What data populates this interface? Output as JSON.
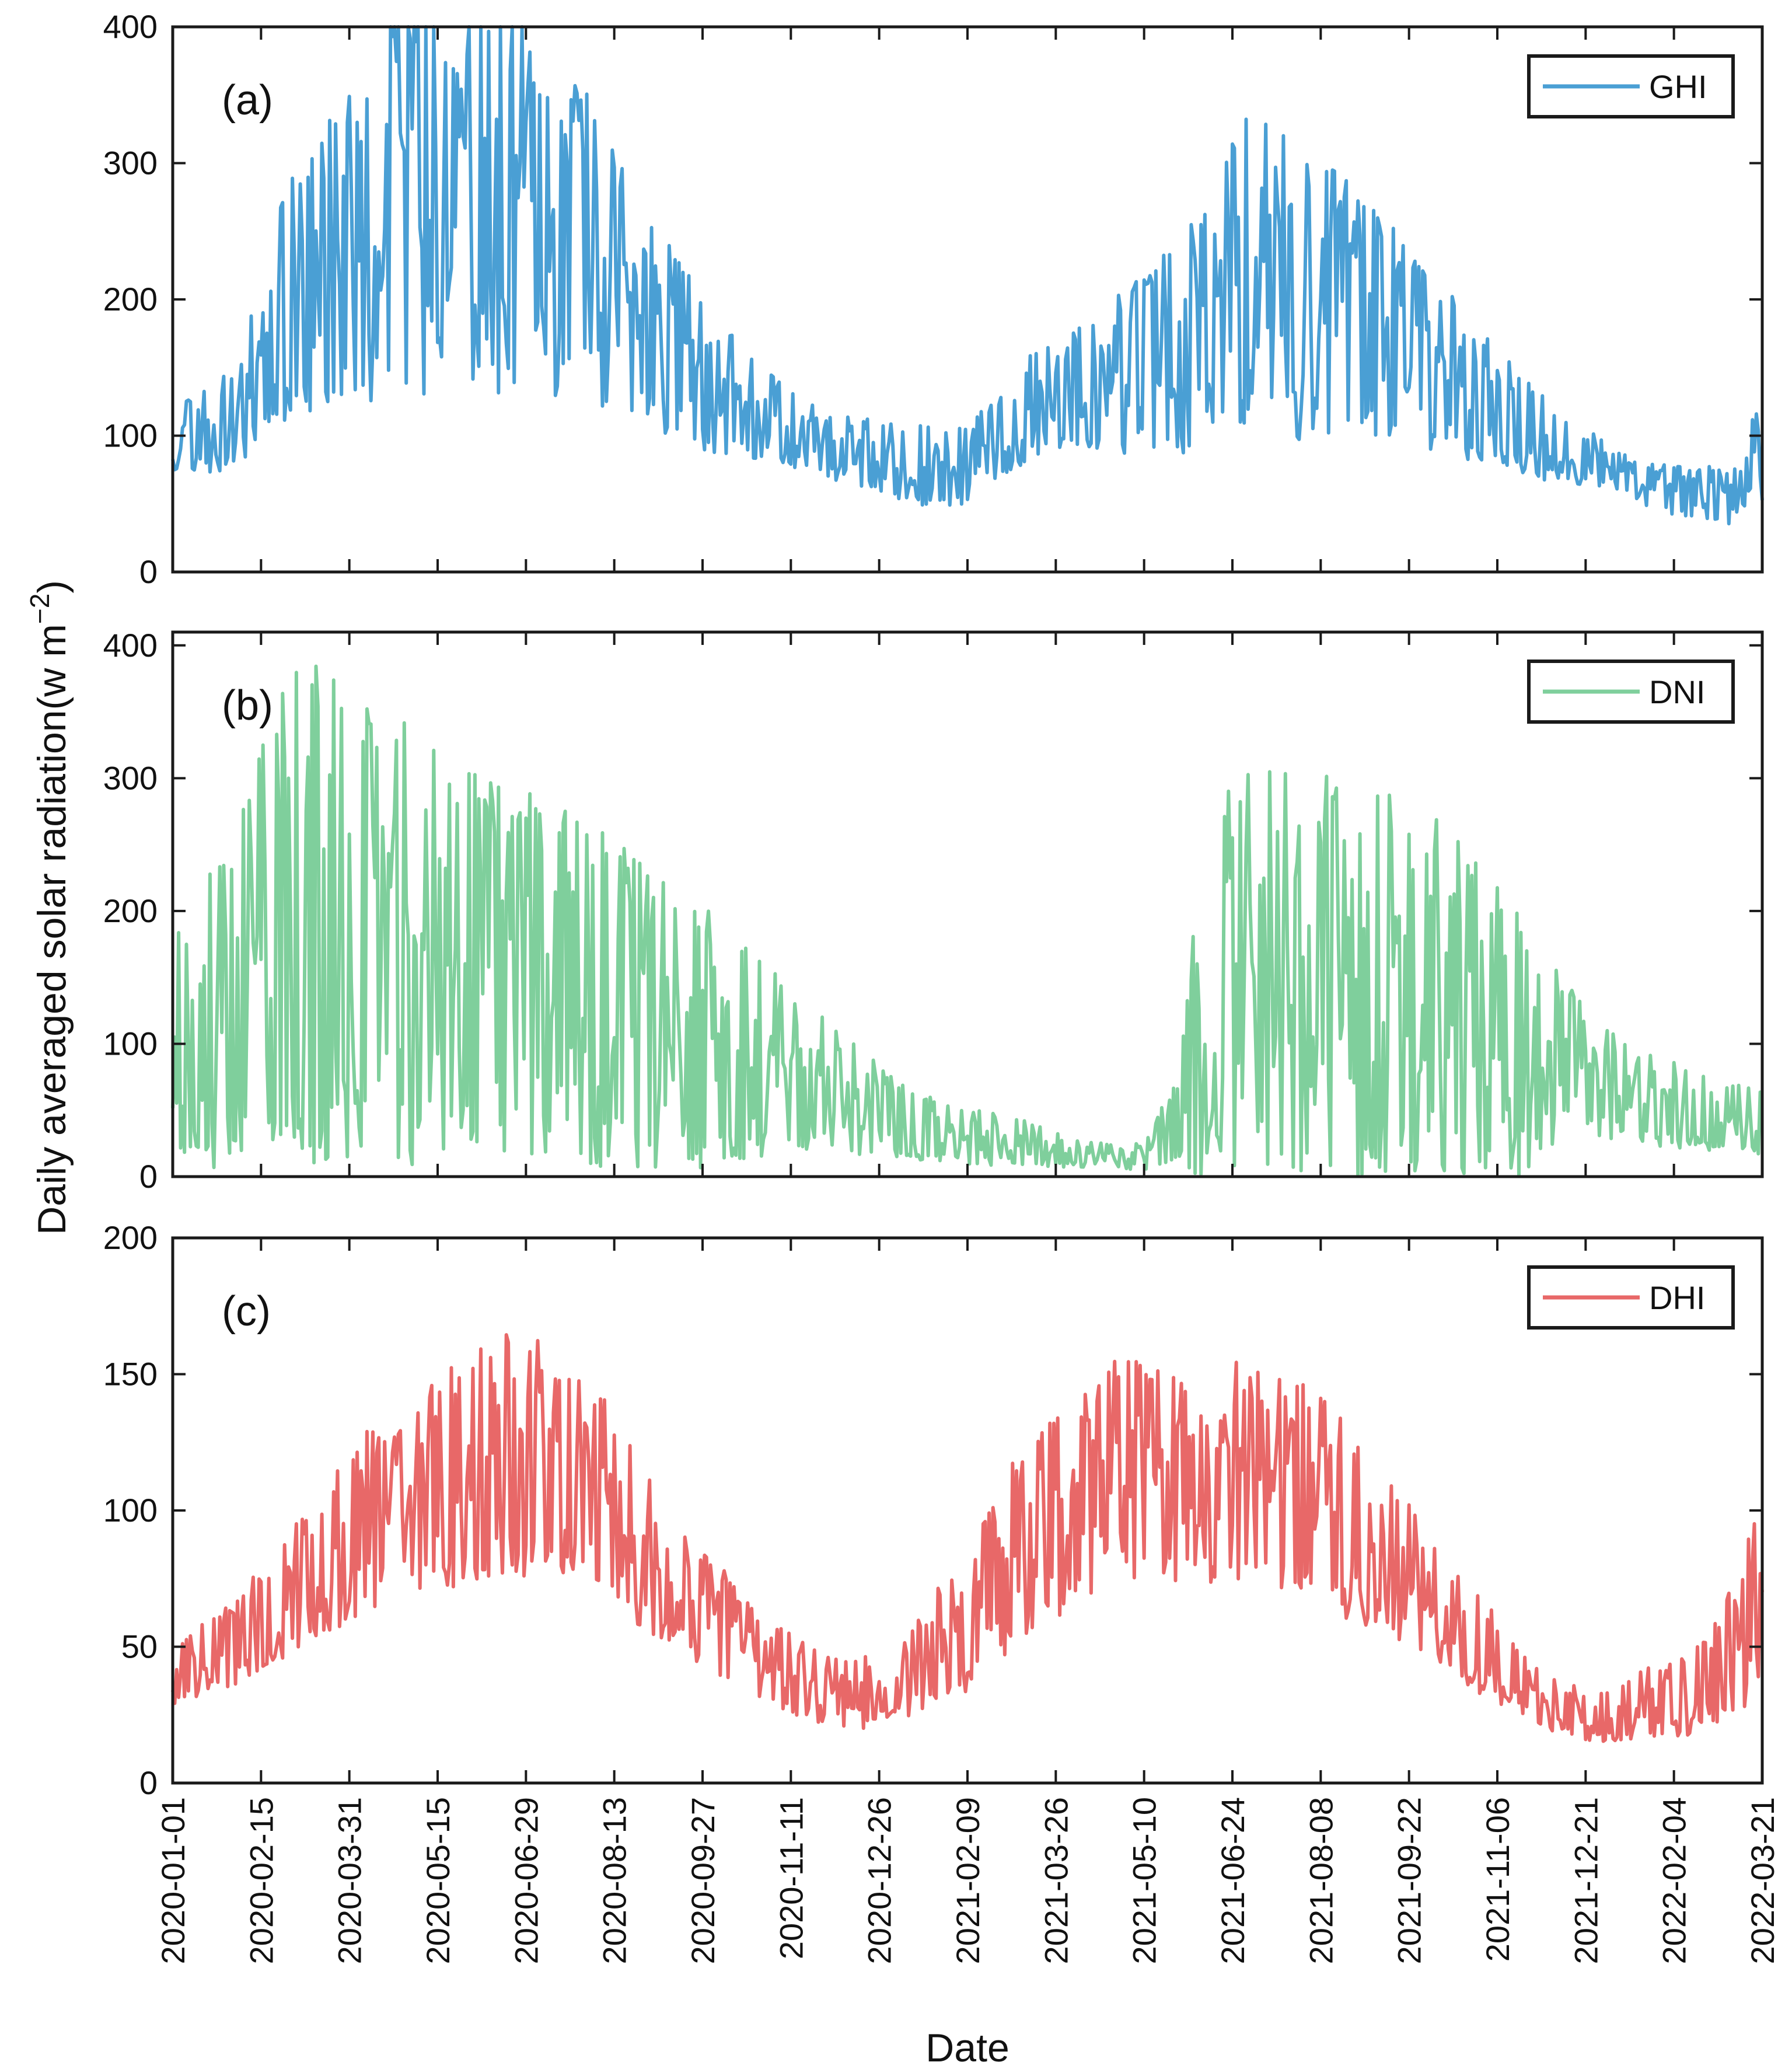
{
  "chart_data": {
    "type": "line",
    "shared_ylabel": "Daily averaged solar radiation(w m",
    "shared_ylabel_sup": "−2",
    "shared_ylabel_close": ")",
    "xlabel": "Date",
    "x_tick_labels": [
      "2020-01-01",
      "2020-02-15",
      "2020-03-31",
      "2020-05-15",
      "2020-06-29",
      "2020-08-13",
      "2020-09-27",
      "2020-11-11",
      "2020-12-26",
      "2021-02-09",
      "2021-03-26",
      "2021-05-10",
      "2021-06-24",
      "2021-08-08",
      "2021-09-22",
      "2021-11-06",
      "2021-12-21",
      "2022-02-04",
      "2022-03-21"
    ],
    "x_range_days": [
      0,
      810
    ],
    "panels": [
      {
        "label": "(a)",
        "series_name": "GHI",
        "color": "#4a9fd4",
        "ylim": [
          0,
          400
        ],
        "yticks": [
          0,
          100,
          200,
          300,
          400
        ],
        "legend": "top-right",
        "anchors": [
          [
            0,
            95
          ],
          [
            15,
            105
          ],
          [
            30,
            110
          ],
          [
            45,
            160
          ],
          [
            60,
            200
          ],
          [
            75,
            220
          ],
          [
            90,
            235
          ],
          [
            105,
            270
          ],
          [
            120,
            290
          ],
          [
            135,
            290
          ],
          [
            150,
            285
          ],
          [
            165,
            280
          ],
          [
            180,
            270
          ],
          [
            195,
            260
          ],
          [
            210,
            240
          ],
          [
            225,
            220
          ],
          [
            240,
            195
          ],
          [
            255,
            170
          ],
          [
            270,
            145
          ],
          [
            285,
            130
          ],
          [
            300,
            115
          ],
          [
            315,
            105
          ],
          [
            330,
            95
          ],
          [
            345,
            88
          ],
          [
            360,
            85
          ],
          [
            375,
            80
          ],
          [
            390,
            75
          ],
          [
            405,
            80
          ],
          [
            420,
            95
          ],
          [
            435,
            120
          ],
          [
            450,
            130
          ],
          [
            465,
            140
          ],
          [
            480,
            145
          ],
          [
            495,
            150
          ],
          [
            510,
            160
          ],
          [
            525,
            185
          ],
          [
            540,
            210
          ],
          [
            555,
            225
          ],
          [
            570,
            215
          ],
          [
            585,
            205
          ],
          [
            600,
            190
          ],
          [
            615,
            180
          ],
          [
            630,
            165
          ],
          [
            645,
            150
          ],
          [
            660,
            135
          ],
          [
            675,
            120
          ],
          [
            690,
            105
          ],
          [
            705,
            95
          ],
          [
            720,
            85
          ],
          [
            735,
            75
          ],
          [
            750,
            65
          ],
          [
            765,
            60
          ],
          [
            780,
            55
          ],
          [
            795,
            60
          ],
          [
            810,
            90
          ]
        ],
        "amplitude": [
          [
            0,
            0.25
          ],
          [
            60,
            0.45
          ],
          [
            120,
            0.55
          ],
          [
            180,
            0.55
          ],
          [
            240,
            0.45
          ],
          [
            285,
            0.35
          ],
          [
            330,
            0.25
          ],
          [
            390,
            0.4
          ],
          [
            450,
            0.3
          ],
          [
            510,
            0.5
          ],
          [
            570,
            0.55
          ],
          [
            630,
            0.45
          ],
          [
            690,
            0.35
          ],
          [
            740,
            0.2
          ],
          [
            810,
            0.5
          ]
        ],
        "seed": 11
      },
      {
        "label": "(b)",
        "series_name": "DNI",
        "color": "#7fcf9c",
        "ylim": [
          0,
          410
        ],
        "yticks": [
          0,
          100,
          200,
          300,
          400
        ],
        "legend": "top-right",
        "anchors": [
          [
            0,
            100
          ],
          [
            15,
            120
          ],
          [
            30,
            140
          ],
          [
            45,
            170
          ],
          [
            60,
            195
          ],
          [
            75,
            200
          ],
          [
            90,
            190
          ],
          [
            105,
            180
          ],
          [
            120,
            175
          ],
          [
            135,
            170
          ],
          [
            150,
            160
          ],
          [
            165,
            155
          ],
          [
            180,
            150
          ],
          [
            195,
            145
          ],
          [
            210,
            140
          ],
          [
            225,
            135
          ],
          [
            240,
            125
          ],
          [
            255,
            115
          ],
          [
            270,
            105
          ],
          [
            285,
            95
          ],
          [
            300,
            90
          ],
          [
            315,
            85
          ],
          [
            330,
            75
          ],
          [
            345,
            60
          ],
          [
            360,
            50
          ],
          [
            375,
            40
          ],
          [
            390,
            35
          ],
          [
            405,
            30
          ],
          [
            420,
            28
          ],
          [
            435,
            25
          ],
          [
            450,
            20
          ],
          [
            465,
            18
          ],
          [
            480,
            15
          ],
          [
            495,
            15
          ],
          [
            510,
            40
          ],
          [
            525,
            120
          ],
          [
            540,
            150
          ],
          [
            555,
            160
          ],
          [
            570,
            165
          ],
          [
            585,
            160
          ],
          [
            600,
            155
          ],
          [
            615,
            150
          ],
          [
            630,
            145
          ],
          [
            645,
            135
          ],
          [
            660,
            125
          ],
          [
            675,
            110
          ],
          [
            690,
            100
          ],
          [
            705,
            90
          ],
          [
            720,
            80
          ],
          [
            735,
            70
          ],
          [
            750,
            60
          ],
          [
            765,
            55
          ],
          [
            780,
            50
          ],
          [
            795,
            45
          ],
          [
            810,
            40
          ]
        ],
        "amplitude": [
          [
            0,
            0.95
          ],
          [
            270,
            0.95
          ],
          [
            330,
            0.75
          ],
          [
            360,
            0.7
          ],
          [
            420,
            0.7
          ],
          [
            480,
            0.6
          ],
          [
            500,
            0.7
          ],
          [
            520,
            1.0
          ],
          [
            690,
            1.0
          ],
          [
            720,
            0.6
          ],
          [
            810,
            0.6
          ]
        ],
        "seed": 23
      },
      {
        "label": "(c)",
        "series_name": "DHI",
        "color": "#e86868",
        "ylim": [
          0,
          200
        ],
        "yticks": [
          0,
          50,
          100,
          150,
          200
        ],
        "legend": "top-right",
        "anchors": [
          [
            0,
            40
          ],
          [
            15,
            45
          ],
          [
            30,
            50
          ],
          [
            45,
            60
          ],
          [
            60,
            70
          ],
          [
            75,
            80
          ],
          [
            90,
            90
          ],
          [
            105,
            100
          ],
          [
            120,
            105
          ],
          [
            135,
            110
          ],
          [
            150,
            115
          ],
          [
            165,
            120
          ],
          [
            180,
            120
          ],
          [
            195,
            115
          ],
          [
            210,
            110
          ],
          [
            225,
            100
          ],
          [
            240,
            90
          ],
          [
            255,
            75
          ],
          [
            270,
            65
          ],
          [
            285,
            55
          ],
          [
            300,
            45
          ],
          [
            315,
            40
          ],
          [
            330,
            35
          ],
          [
            345,
            32
          ],
          [
            360,
            35
          ],
          [
            375,
            40
          ],
          [
            390,
            50
          ],
          [
            405,
            60
          ],
          [
            420,
            75
          ],
          [
            435,
            90
          ],
          [
            450,
            100
          ],
          [
            465,
            110
          ],
          [
            480,
            115
          ],
          [
            495,
            115
          ],
          [
            510,
            110
          ],
          [
            525,
            112
          ],
          [
            540,
            115
          ],
          [
            555,
            115
          ],
          [
            570,
            110
          ],
          [
            585,
            105
          ],
          [
            600,
            95
          ],
          [
            615,
            85
          ],
          [
            630,
            75
          ],
          [
            645,
            65
          ],
          [
            660,
            55
          ],
          [
            675,
            45
          ],
          [
            690,
            35
          ],
          [
            705,
            28
          ],
          [
            720,
            25
          ],
          [
            735,
            25
          ],
          [
            750,
            30
          ],
          [
            765,
            30
          ],
          [
            780,
            35
          ],
          [
            795,
            50
          ],
          [
            810,
            75
          ]
        ],
        "amplitude": [
          [
            0,
            0.3
          ],
          [
            100,
            0.35
          ],
          [
            200,
            0.38
          ],
          [
            300,
            0.35
          ],
          [
            390,
            0.45
          ],
          [
            500,
            0.35
          ],
          [
            600,
            0.38
          ],
          [
            700,
            0.35
          ],
          [
            810,
            0.55
          ]
        ],
        "seed": 37
      }
    ]
  }
}
